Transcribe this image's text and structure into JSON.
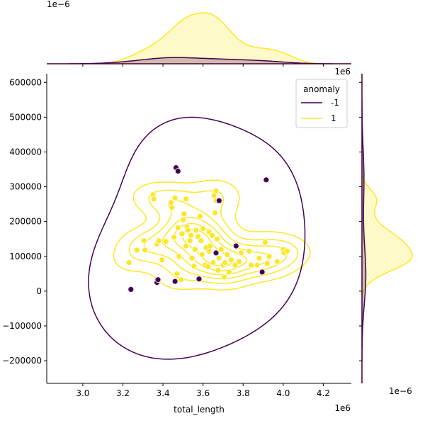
{
  "chart_data": {
    "type": "scatter",
    "xlabel": "total_length",
    "ylabel": "",
    "x_offset_label": "1e6",
    "y_offset_label": "1e6",
    "top_marginal_offset_label": "1e−6",
    "right_marginal_offset_label": "1e−6",
    "xlim": [
      2820000,
      4340000
    ],
    "ylim": [
      -265000,
      625000
    ],
    "x_ticks": [
      3000000,
      3200000,
      3400000,
      3600000,
      3800000,
      4000000,
      4200000
    ],
    "x_tick_labels": [
      "3.0",
      "3.2",
      "3.4",
      "3.6",
      "3.8",
      "4.0",
      "4.2"
    ],
    "y_ticks": [
      -200000,
      -100000,
      0,
      100000,
      200000,
      300000,
      400000,
      500000,
      600000
    ],
    "y_tick_labels": [
      "−200000",
      "−100000",
      "0",
      "100000",
      "200000",
      "300000",
      "400000",
      "500000",
      "600000"
    ],
    "grid": false,
    "legend": {
      "title": "anomaly",
      "placement": "top-right",
      "entries": [
        {
          "label": "-1",
          "color": "#440154"
        },
        {
          "label": "1",
          "color": "#fde725"
        }
      ]
    },
    "series": [
      {
        "name": "-1",
        "color": "#440154",
        "points": [
          [
            3240000,
            5000
          ],
          [
            3370000,
            25000
          ],
          [
            3375000,
            33000
          ],
          [
            3460000,
            28000
          ],
          [
            3465000,
            355000
          ],
          [
            3475000,
            345000
          ],
          [
            3580000,
            35000
          ],
          [
            3665000,
            110000
          ],
          [
            3680000,
            260000
          ],
          [
            3765000,
            130000
          ],
          [
            3895000,
            55000
          ],
          [
            3915000,
            320000
          ]
        ]
      },
      {
        "name": "1",
        "color": "#fde725",
        "points": [
          [
            3230000,
            82000
          ],
          [
            3270000,
            118000
          ],
          [
            3305000,
            145000
          ],
          [
            3310000,
            118000
          ],
          [
            3350000,
            277000
          ],
          [
            3355000,
            265000
          ],
          [
            3370000,
            135000
          ],
          [
            3380000,
            145000
          ],
          [
            3395000,
            90000
          ],
          [
            3415000,
            143000
          ],
          [
            3440000,
            255000
          ],
          [
            3445000,
            240000
          ],
          [
            3460000,
            268000
          ],
          [
            3455000,
            155000
          ],
          [
            3470000,
            50000
          ],
          [
            3475000,
            182000
          ],
          [
            3480000,
            100000
          ],
          [
            3490000,
            33000
          ],
          [
            3495000,
            165000
          ],
          [
            3500000,
            205000
          ],
          [
            3505000,
            222000
          ],
          [
            3515000,
            265000
          ],
          [
            3515000,
            130000
          ],
          [
            3520000,
            185000
          ],
          [
            3525000,
            175000
          ],
          [
            3535000,
            145000
          ],
          [
            3540000,
            160000
          ],
          [
            3545000,
            95000
          ],
          [
            3555000,
            72000
          ],
          [
            3560000,
            120000
          ],
          [
            3565000,
            175000
          ],
          [
            3575000,
            157000
          ],
          [
            3585000,
            215000
          ],
          [
            3590000,
            145000
          ],
          [
            3595000,
            105000
          ],
          [
            3600000,
            180000
          ],
          [
            3610000,
            75000
          ],
          [
            3615000,
            125000
          ],
          [
            3625000,
            70000
          ],
          [
            3630000,
            170000
          ],
          [
            3630000,
            115000
          ],
          [
            3635000,
            130000
          ],
          [
            3645000,
            160000
          ],
          [
            3650000,
            82000
          ],
          [
            3655000,
            275000
          ],
          [
            3660000,
            225000
          ],
          [
            3665000,
            288000
          ],
          [
            3665000,
            260000
          ],
          [
            3670000,
            150000
          ],
          [
            3675000,
            60000
          ],
          [
            3680000,
            95000
          ],
          [
            3690000,
            120000
          ],
          [
            3700000,
            75000
          ],
          [
            3705000,
            40000
          ],
          [
            3710000,
            82000
          ],
          [
            3720000,
            105000
          ],
          [
            3730000,
            55000
          ],
          [
            3740000,
            90000
          ],
          [
            3760000,
            75000
          ],
          [
            3780000,
            85000
          ],
          [
            3790000,
            110000
          ],
          [
            3830000,
            115000
          ],
          [
            3840000,
            75000
          ],
          [
            3870000,
            75000
          ],
          [
            3880000,
            95000
          ],
          [
            3910000,
            140000
          ],
          [
            3920000,
            80000
          ],
          [
            3930000,
            100000
          ],
          [
            3970000,
            85000
          ],
          [
            4000000,
            120000
          ],
          [
            4005000,
            110000
          ],
          [
            4020000,
            115000
          ]
        ]
      }
    ]
  }
}
